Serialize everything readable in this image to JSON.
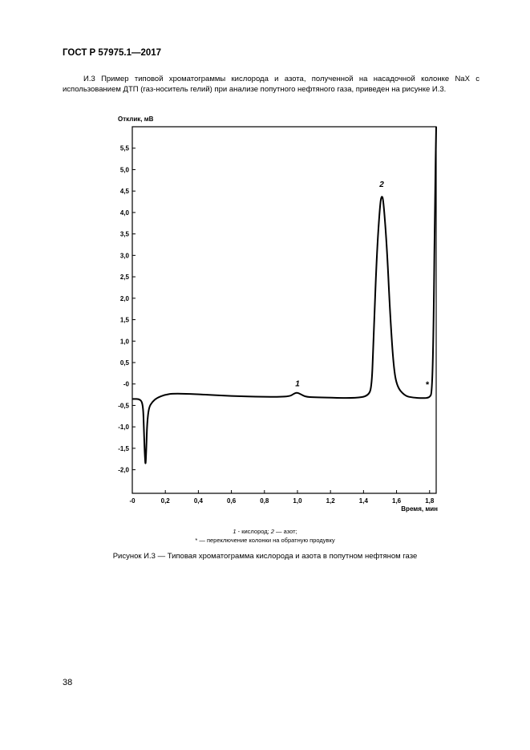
{
  "header": {
    "standard": "ГОСТ Р 57975.1—2017"
  },
  "intro": {
    "text": "И.3 Пример типовой хроматограммы кислорода и азота, полученной на насадочной колонке NaX с использованием ДТП (газ-носитель гелий) при анализе попутного нефтяного газа, приведен на рисунке И.3."
  },
  "legend": {
    "line1_num1": "1",
    "line1_text1": " - кислород; ",
    "line1_num2": "2",
    "line1_text2": " — азот;",
    "line2": "* — переключение колонки на обратную продувку"
  },
  "caption": "Рисунок И.3 — Типовая хроматограмма кислорода и азота в попутном нефтяном газе",
  "page_number": "38",
  "chart_data": {
    "type": "line",
    "ylabel": "Отклик, мВ",
    "xlabel": "Время, мин",
    "xlim": [
      0,
      1.84
    ],
    "ylim": [
      -2.55,
      6.0
    ],
    "x_ticks": [
      {
        "value": 0.0,
        "label": "-0"
      },
      {
        "value": 0.2,
        "label": "0,2"
      },
      {
        "value": 0.4,
        "label": "0,4"
      },
      {
        "value": 0.6,
        "label": "0,6"
      },
      {
        "value": 0.8,
        "label": "0,8"
      },
      {
        "value": 1.0,
        "label": "1,0"
      },
      {
        "value": 1.2,
        "label": "1,2"
      },
      {
        "value": 1.4,
        "label": "1,4"
      },
      {
        "value": 1.6,
        "label": "1,6"
      },
      {
        "value": 1.8,
        "label": "1,8"
      }
    ],
    "y_ticks": [
      {
        "value": 5.5,
        "label": "5,5"
      },
      {
        "value": 5.0,
        "label": "5,0"
      },
      {
        "value": 4.5,
        "label": "4,5"
      },
      {
        "value": 4.0,
        "label": "4,0"
      },
      {
        "value": 3.5,
        "label": "3,5"
      },
      {
        "value": 3.0,
        "label": "3,0"
      },
      {
        "value": 2.5,
        "label": "2,5"
      },
      {
        "value": 2.0,
        "label": "2,0"
      },
      {
        "value": 1.5,
        "label": "1,5"
      },
      {
        "value": 1.0,
        "label": "1,0"
      },
      {
        "value": 0.5,
        "label": "0,5"
      },
      {
        "value": 0.0,
        "label": "-0"
      },
      {
        "value": -0.5,
        "label": "-0,5"
      },
      {
        "value": -1.0,
        "label": "-1,0"
      },
      {
        "value": -1.5,
        "label": "-1,5"
      },
      {
        "value": -2.0,
        "label": "-2,0"
      }
    ],
    "series": [
      {
        "x": [
          0.0,
          0.05,
          0.065,
          0.07,
          0.075,
          0.08,
          0.085,
          0.09,
          0.1,
          0.12,
          0.15,
          0.2,
          0.25,
          0.4,
          0.6,
          0.8,
          0.95,
          0.98,
          1.0,
          1.02,
          1.05,
          1.1,
          1.2,
          1.35,
          1.43,
          1.45,
          1.46,
          1.48,
          1.5,
          1.51,
          1.52,
          1.54,
          1.56,
          1.58,
          1.6,
          1.65,
          1.7,
          1.76,
          1.8,
          1.815,
          1.825,
          1.833,
          1.84
        ],
        "y": [
          -0.35,
          -0.35,
          -0.5,
          -1.0,
          -1.6,
          -1.95,
          -1.5,
          -0.9,
          -0.55,
          -0.42,
          -0.32,
          -0.25,
          -0.22,
          -0.24,
          -0.28,
          -0.3,
          -0.3,
          -0.22,
          -0.2,
          -0.24,
          -0.3,
          -0.31,
          -0.32,
          -0.33,
          -0.28,
          -0.05,
          1.0,
          3.0,
          4.2,
          4.4,
          4.3,
          3.3,
          1.7,
          0.5,
          -0.05,
          -0.28,
          -0.32,
          -0.33,
          -0.32,
          -0.2,
          1.5,
          4.5,
          6.0
        ]
      }
    ],
    "annotations": [
      {
        "label": "1",
        "x": 1.0,
        "y": -0.05
      },
      {
        "label": "2",
        "x": 1.51,
        "y": 4.6
      },
      {
        "label": "*",
        "x": 1.785,
        "y": -0.08
      }
    ],
    "grid": false
  }
}
